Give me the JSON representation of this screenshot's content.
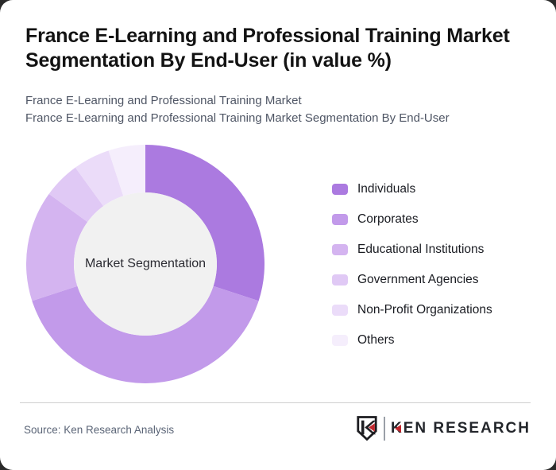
{
  "page": {
    "background_color": "#2a2a2a",
    "card_color": "#ffffff"
  },
  "header": {
    "title": "France E-Learning and Professional Training Market Segmentation By End-User (in value %)",
    "subtitle_line1": "France E-Learning and Professional Training Market",
    "subtitle_line2": "France E-Learning and Professional Training Market Segmentation By End-User"
  },
  "chart_data": {
    "type": "pie",
    "variant": "donut",
    "title": "France E-Learning and Professional Training Market Segmentation By End-User (in value %)",
    "center_label": "Market Segmentation",
    "unit": "value %",
    "categories": [
      "Individuals",
      "Corporates",
      "Educational Institutions",
      "Government Agencies",
      "Non-Profit Organizations",
      "Others"
    ],
    "values": [
      30,
      40,
      15,
      5,
      5,
      5
    ],
    "colors": [
      "#ab7ae0",
      "#c29aea",
      "#d4b4f0",
      "#e0c9f5",
      "#ebdcf9",
      "#f5eefc"
    ],
    "start_angle_deg": 0,
    "direction": "clockwise",
    "inner_radius_ratio": 0.6,
    "center_fill": "#f1f1f1",
    "legend_position": "right"
  },
  "footer": {
    "source_text": "Source: Ken Research Analysis",
    "logo": {
      "brand_text": "KEN RESEARCH",
      "accent_color": "#c1272d",
      "ink_color": "#1d1d21"
    }
  }
}
